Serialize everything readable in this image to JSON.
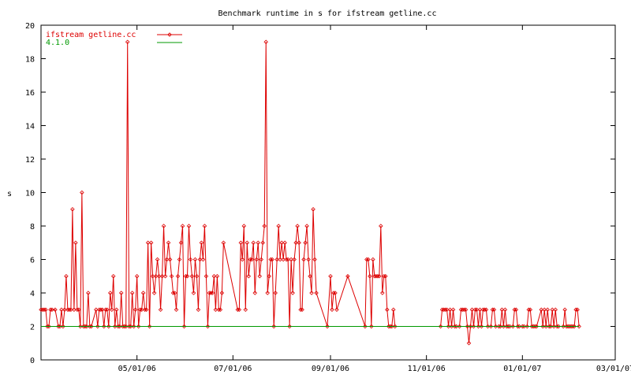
{
  "chart_data": {
    "type": "line",
    "title": "Benchmark runtime in s for ifstream getline.cc",
    "xlabel": "",
    "ylabel": "s",
    "ylim": [
      0,
      20
    ],
    "yticks": [
      0,
      2,
      4,
      6,
      8,
      10,
      12,
      14,
      16,
      18,
      20
    ],
    "xlim": [
      "2006-03-01",
      "2007-03-01"
    ],
    "xticks": [
      {
        "date": "2006-05-01",
        "label": "05/01/06"
      },
      {
        "date": "2006-07-01",
        "label": "07/01/06"
      },
      {
        "date": "2006-09-01",
        "label": "09/01/06"
      },
      {
        "date": "2006-11-01",
        "label": "11/01/06"
      },
      {
        "date": "2007-01-01",
        "label": "01/01/07"
      },
      {
        "date": "2007-03-01",
        "label": "03/01/07"
      }
    ],
    "grid": false,
    "legend_position": "top-left",
    "series": [
      {
        "name": "ifstream getline.cc",
        "color": "#dd0000",
        "marker": "diamond",
        "points": [
          [
            "2006-03-01",
            3
          ],
          [
            "2006-03-02",
            3
          ],
          [
            "2006-03-03",
            3
          ],
          [
            "2006-03-04",
            3
          ],
          [
            "2006-03-05",
            2
          ],
          [
            "2006-03-06",
            2
          ],
          [
            "2006-03-07",
            3
          ],
          [
            "2006-03-08",
            3
          ],
          [
            "2006-03-10",
            3
          ],
          [
            "2006-03-12",
            2
          ],
          [
            "2006-03-13",
            2
          ],
          [
            "2006-03-14",
            3
          ],
          [
            "2006-03-15",
            2
          ],
          [
            "2006-03-16",
            3
          ],
          [
            "2006-03-17",
            5
          ],
          [
            "2006-03-18",
            3
          ],
          [
            "2006-03-19",
            3
          ],
          [
            "2006-03-20",
            3
          ],
          [
            "2006-03-21",
            9
          ],
          [
            "2006-03-22",
            3
          ],
          [
            "2006-03-23",
            7
          ],
          [
            "2006-03-24",
            3
          ],
          [
            "2006-03-25",
            3
          ],
          [
            "2006-03-26",
            2
          ],
          [
            "2006-03-27",
            10
          ],
          [
            "2006-03-28",
            2
          ],
          [
            "2006-03-29",
            2
          ],
          [
            "2006-03-30",
            2
          ],
          [
            "2006-03-31",
            4
          ],
          [
            "2006-04-01",
            2
          ],
          [
            "2006-04-02",
            2
          ],
          [
            "2006-04-05",
            3
          ],
          [
            "2006-04-06",
            2
          ],
          [
            "2006-04-07",
            3
          ],
          [
            "2006-04-08",
            3
          ],
          [
            "2006-04-09",
            3
          ],
          [
            "2006-04-10",
            2
          ],
          [
            "2006-04-11",
            3
          ],
          [
            "2006-04-12",
            3
          ],
          [
            "2006-04-13",
            2
          ],
          [
            "2006-04-14",
            4
          ],
          [
            "2006-04-15",
            3
          ],
          [
            "2006-04-16",
            5
          ],
          [
            "2006-04-17",
            2
          ],
          [
            "2006-04-18",
            3
          ],
          [
            "2006-04-19",
            2
          ],
          [
            "2006-04-20",
            2
          ],
          [
            "2006-04-21",
            4
          ],
          [
            "2006-04-22",
            2
          ],
          [
            "2006-04-23",
            2
          ],
          [
            "2006-04-24",
            2
          ],
          [
            "2006-04-25",
            19
          ],
          [
            "2006-04-26",
            2
          ],
          [
            "2006-04-27",
            2
          ],
          [
            "2006-04-28",
            4
          ],
          [
            "2006-04-29",
            2
          ],
          [
            "2006-04-30",
            3
          ],
          [
            "2006-05-01",
            5
          ],
          [
            "2006-05-02",
            2
          ],
          [
            "2006-05-03",
            3
          ],
          [
            "2006-05-04",
            3
          ],
          [
            "2006-05-05",
            4
          ],
          [
            "2006-05-06",
            3
          ],
          [
            "2006-05-07",
            3
          ],
          [
            "2006-05-08",
            7
          ],
          [
            "2006-05-09",
            2
          ],
          [
            "2006-05-10",
            7
          ],
          [
            "2006-05-11",
            5
          ],
          [
            "2006-05-12",
            4
          ],
          [
            "2006-05-13",
            5
          ],
          [
            "2006-05-14",
            6
          ],
          [
            "2006-05-15",
            5
          ],
          [
            "2006-05-16",
            3
          ],
          [
            "2006-05-17",
            5
          ],
          [
            "2006-05-18",
            8
          ],
          [
            "2006-05-19",
            5
          ],
          [
            "2006-05-20",
            6
          ],
          [
            "2006-05-21",
            7
          ],
          [
            "2006-05-22",
            6
          ],
          [
            "2006-05-23",
            5
          ],
          [
            "2006-05-24",
            4
          ],
          [
            "2006-05-25",
            4
          ],
          [
            "2006-05-26",
            3
          ],
          [
            "2006-05-27",
            5
          ],
          [
            "2006-05-28",
            6
          ],
          [
            "2006-05-29",
            7
          ],
          [
            "2006-05-30",
            8
          ],
          [
            "2006-05-31",
            2
          ],
          [
            "2006-06-01",
            5
          ],
          [
            "2006-06-02",
            5
          ],
          [
            "2006-06-03",
            8
          ],
          [
            "2006-06-04",
            6
          ],
          [
            "2006-06-05",
            5
          ],
          [
            "2006-06-06",
            4
          ],
          [
            "2006-06-07",
            6
          ],
          [
            "2006-06-08",
            5
          ],
          [
            "2006-06-09",
            3
          ],
          [
            "2006-06-10",
            6
          ],
          [
            "2006-06-11",
            7
          ],
          [
            "2006-06-12",
            6
          ],
          [
            "2006-06-13",
            8
          ],
          [
            "2006-06-14",
            5
          ],
          [
            "2006-06-15",
            2
          ],
          [
            "2006-06-16",
            4
          ],
          [
            "2006-06-17",
            4
          ],
          [
            "2006-06-18",
            4
          ],
          [
            "2006-06-19",
            5
          ],
          [
            "2006-06-20",
            3
          ],
          [
            "2006-06-21",
            5
          ],
          [
            "2006-06-22",
            3
          ],
          [
            "2006-06-23",
            3
          ],
          [
            "2006-06-24",
            4
          ],
          [
            "2006-06-25",
            7
          ],
          [
            "2006-07-04",
            3
          ],
          [
            "2006-07-05",
            3
          ],
          [
            "2006-07-06",
            7
          ],
          [
            "2006-07-07",
            6
          ],
          [
            "2006-07-08",
            8
          ],
          [
            "2006-07-09",
            3
          ],
          [
            "2006-07-10",
            7
          ],
          [
            "2006-07-11",
            5
          ],
          [
            "2006-07-12",
            6
          ],
          [
            "2006-07-13",
            6
          ],
          [
            "2006-07-14",
            7
          ],
          [
            "2006-07-15",
            4
          ],
          [
            "2006-07-16",
            6
          ],
          [
            "2006-07-17",
            7
          ],
          [
            "2006-07-18",
            5
          ],
          [
            "2006-07-19",
            6
          ],
          [
            "2006-07-20",
            7
          ],
          [
            "2006-07-21",
            8
          ],
          [
            "2006-07-22",
            19
          ],
          [
            "2006-07-23",
            4
          ],
          [
            "2006-07-24",
            5
          ],
          [
            "2006-07-25",
            6
          ],
          [
            "2006-07-26",
            6
          ],
          [
            "2006-07-27",
            2
          ],
          [
            "2006-07-28",
            4
          ],
          [
            "2006-07-29",
            6
          ],
          [
            "2006-07-30",
            8
          ],
          [
            "2006-07-31",
            6
          ],
          [
            "2006-08-01",
            7
          ],
          [
            "2006-08-02",
            6
          ],
          [
            "2006-08-03",
            7
          ],
          [
            "2006-08-04",
            6
          ],
          [
            "2006-08-05",
            6
          ],
          [
            "2006-08-06",
            2
          ],
          [
            "2006-08-07",
            6
          ],
          [
            "2006-08-08",
            4
          ],
          [
            "2006-08-09",
            6
          ],
          [
            "2006-08-10",
            7
          ],
          [
            "2006-08-11",
            8
          ],
          [
            "2006-08-12",
            7
          ],
          [
            "2006-08-13",
            3
          ],
          [
            "2006-08-14",
            3
          ],
          [
            "2006-08-15",
            6
          ],
          [
            "2006-08-16",
            7
          ],
          [
            "2006-08-17",
            8
          ],
          [
            "2006-08-18",
            6
          ],
          [
            "2006-08-19",
            5
          ],
          [
            "2006-08-20",
            4
          ],
          [
            "2006-08-21",
            9
          ],
          [
            "2006-08-22",
            6
          ],
          [
            "2006-08-23",
            4
          ],
          [
            "2006-08-30",
            2
          ],
          [
            "2006-09-01",
            5
          ],
          [
            "2006-09-02",
            3
          ],
          [
            "2006-09-03",
            4
          ],
          [
            "2006-09-04",
            4
          ],
          [
            "2006-09-05",
            3
          ],
          [
            "2006-09-12",
            5
          ],
          [
            "2006-09-23",
            2
          ],
          [
            "2006-09-24",
            6
          ],
          [
            "2006-09-25",
            6
          ],
          [
            "2006-09-26",
            5
          ],
          [
            "2006-09-27",
            2
          ],
          [
            "2006-09-28",
            6
          ],
          [
            "2006-09-29",
            5
          ],
          [
            "2006-09-30",
            5
          ],
          [
            "2006-10-01",
            5
          ],
          [
            "2006-10-02",
            5
          ],
          [
            "2006-10-03",
            8
          ],
          [
            "2006-10-04",
            4
          ],
          [
            "2006-10-05",
            5
          ],
          [
            "2006-10-06",
            5
          ],
          [
            "2006-10-07",
            3
          ],
          [
            "2006-10-08",
            2
          ],
          [
            "2006-10-09",
            2
          ],
          [
            "2006-10-10",
            2
          ],
          [
            "2006-10-11",
            3
          ],
          [
            "2006-10-12",
            2
          ],
          [
            "2006-11-10",
            2
          ],
          [
            "2006-11-11",
            3
          ],
          [
            "2006-11-12",
            3
          ],
          [
            "2006-11-13",
            3
          ],
          [
            "2006-11-14",
            3
          ],
          [
            "2006-11-15",
            2
          ],
          [
            "2006-11-16",
            3
          ],
          [
            "2006-11-17",
            2
          ],
          [
            "2006-11-18",
            3
          ],
          [
            "2006-11-19",
            2
          ],
          [
            "2006-11-20",
            2
          ],
          [
            "2006-11-22",
            2
          ],
          [
            "2006-11-23",
            3
          ],
          [
            "2006-11-24",
            3
          ],
          [
            "2006-11-25",
            3
          ],
          [
            "2006-11-26",
            3
          ],
          [
            "2006-11-27",
            2
          ],
          [
            "2006-11-28",
            1
          ],
          [
            "2006-11-29",
            2
          ],
          [
            "2006-11-30",
            3
          ],
          [
            "2006-12-01",
            2
          ],
          [
            "2006-12-02",
            3
          ],
          [
            "2006-12-03",
            3
          ],
          [
            "2006-12-04",
            2
          ],
          [
            "2006-12-05",
            3
          ],
          [
            "2006-12-06",
            2
          ],
          [
            "2006-12-07",
            3
          ],
          [
            "2006-12-08",
            3
          ],
          [
            "2006-12-09",
            3
          ],
          [
            "2006-12-10",
            2
          ],
          [
            "2006-12-12",
            2
          ],
          [
            "2006-12-13",
            3
          ],
          [
            "2006-12-14",
            3
          ],
          [
            "2006-12-15",
            2
          ],
          [
            "2006-12-17",
            2
          ],
          [
            "2006-12-18",
            2
          ],
          [
            "2006-12-19",
            3
          ],
          [
            "2006-12-20",
            2
          ],
          [
            "2006-12-21",
            3
          ],
          [
            "2006-12-22",
            2
          ],
          [
            "2006-12-23",
            2
          ],
          [
            "2006-12-24",
            2
          ],
          [
            "2006-12-26",
            2
          ],
          [
            "2006-12-27",
            3
          ],
          [
            "2006-12-28",
            3
          ],
          [
            "2006-12-29",
            2
          ],
          [
            "2006-12-30",
            2
          ],
          [
            "2007-01-01",
            2
          ],
          [
            "2007-01-02",
            2
          ],
          [
            "2007-01-04",
            2
          ],
          [
            "2007-01-05",
            3
          ],
          [
            "2007-01-06",
            3
          ],
          [
            "2007-01-07",
            2
          ],
          [
            "2007-01-08",
            2
          ],
          [
            "2007-01-09",
            2
          ],
          [
            "2007-01-10",
            2
          ],
          [
            "2007-01-13",
            3
          ],
          [
            "2007-01-14",
            2
          ],
          [
            "2007-01-15",
            3
          ],
          [
            "2007-01-16",
            2
          ],
          [
            "2007-01-17",
            3
          ],
          [
            "2007-01-18",
            2
          ],
          [
            "2007-01-19",
            2
          ],
          [
            "2007-01-20",
            3
          ],
          [
            "2007-01-21",
            2
          ],
          [
            "2007-01-22",
            3
          ],
          [
            "2007-01-23",
            2
          ],
          [
            "2007-01-24",
            2
          ],
          [
            "2007-01-27",
            2
          ],
          [
            "2007-01-28",
            3
          ],
          [
            "2007-01-29",
            2
          ],
          [
            "2007-01-30",
            2
          ],
          [
            "2007-01-31",
            2
          ],
          [
            "2007-02-01",
            2
          ],
          [
            "2007-02-02",
            2
          ],
          [
            "2007-02-03",
            2
          ],
          [
            "2007-02-04",
            3
          ],
          [
            "2007-02-05",
            3
          ],
          [
            "2007-02-06",
            2
          ]
        ]
      },
      {
        "name": "4.1.0",
        "color": "#009900",
        "points": [
          [
            "2006-03-01",
            2
          ],
          [
            "2007-02-06",
            2
          ]
        ]
      }
    ]
  }
}
